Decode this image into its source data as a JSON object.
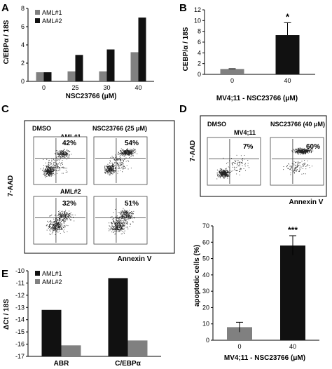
{
  "panels": {
    "A": {
      "letter": "A",
      "chart_data": {
        "type": "bar",
        "categories": [
          "0",
          "25",
          "30",
          "40"
        ],
        "series": [
          {
            "name": "AML#1",
            "values": [
              1.0,
              1.1,
              1.1,
              3.2
            ],
            "color": "#808080"
          },
          {
            "name": "AML#2",
            "values": [
              1.0,
              2.9,
              3.5,
              7.0
            ],
            "color": "#111111"
          }
        ],
        "xlabel": "NSC23766 (μM)",
        "ylabel": "C/EBPα / 18S",
        "ylim": [
          0,
          8
        ],
        "yticks": [
          0,
          2,
          4,
          6,
          8
        ],
        "legend": "top-left"
      }
    },
    "B": {
      "letter": "B",
      "chart_data": {
        "type": "bar",
        "categories": [
          "0",
          "40"
        ],
        "values": [
          1.0,
          7.3
        ],
        "errors": [
          0.05,
          2.3
        ],
        "colors": [
          "#808080",
          "#111111"
        ],
        "annotation": "*",
        "xlabel": "MV4;11 - NSC23766 (μM)",
        "ylabel": "CEBP/α / 18S",
        "ylim": [
          0,
          12
        ],
        "yticks": [
          0,
          2,
          4,
          6,
          8,
          10,
          12
        ]
      }
    },
    "C": {
      "letter": "C",
      "col_label_dmso": "DMSO",
      "col_label_nsc": "NSC23766 (25 μM)",
      "row_label_1": "AML#1",
      "row_label_2": "AML#2",
      "percent_1_dmso": "42%",
      "percent_1_nsc": "54%",
      "percent_2_dmso": "32%",
      "percent_2_nsc": "51%",
      "y_axis_label": "7-AAD",
      "x_axis_label": "Annexin V"
    },
    "D": {
      "letter": "D",
      "col_label_dmso": "DMSO",
      "col_label_nsc": "NSC23766 (40 μM)",
      "row_label": "MV4;11",
      "percent_dmso": "7%",
      "percent_nsc": "60%",
      "y_axis_label": "7-AAD",
      "x_axis_label": "Annexin V"
    },
    "D2": {
      "chart_data": {
        "type": "bar",
        "categories": [
          "0",
          "40"
        ],
        "values": [
          8,
          58
        ],
        "errors": [
          3,
          6
        ],
        "colors": [
          "#808080",
          "#111111"
        ],
        "annotation": "***",
        "xlabel": "MV4;11 - NSC23766 (μM)",
        "ylabel": "apoptotic cells (%)",
        "ylim": [
          0,
          70
        ],
        "yticks": [
          0,
          10,
          20,
          30,
          40,
          50,
          60,
          70
        ]
      }
    },
    "E": {
      "letter": "E",
      "chart_data": {
        "type": "bar",
        "categories": [
          "ABR",
          "C/EBPα"
        ],
        "series": [
          {
            "name": "AML#1",
            "values": [
              -13.2,
              -10.6
            ],
            "color": "#111111"
          },
          {
            "name": "AML#2",
            "values": [
              -16.1,
              -15.7
            ],
            "color": "#808080"
          }
        ],
        "ylabel": "ΔCt / 18S",
        "ylim": [
          -17,
          -10
        ],
        "yticks": [
          -10,
          -11,
          -12,
          -13,
          -14,
          -15,
          -16,
          -17
        ],
        "legend": "top-left"
      }
    }
  }
}
